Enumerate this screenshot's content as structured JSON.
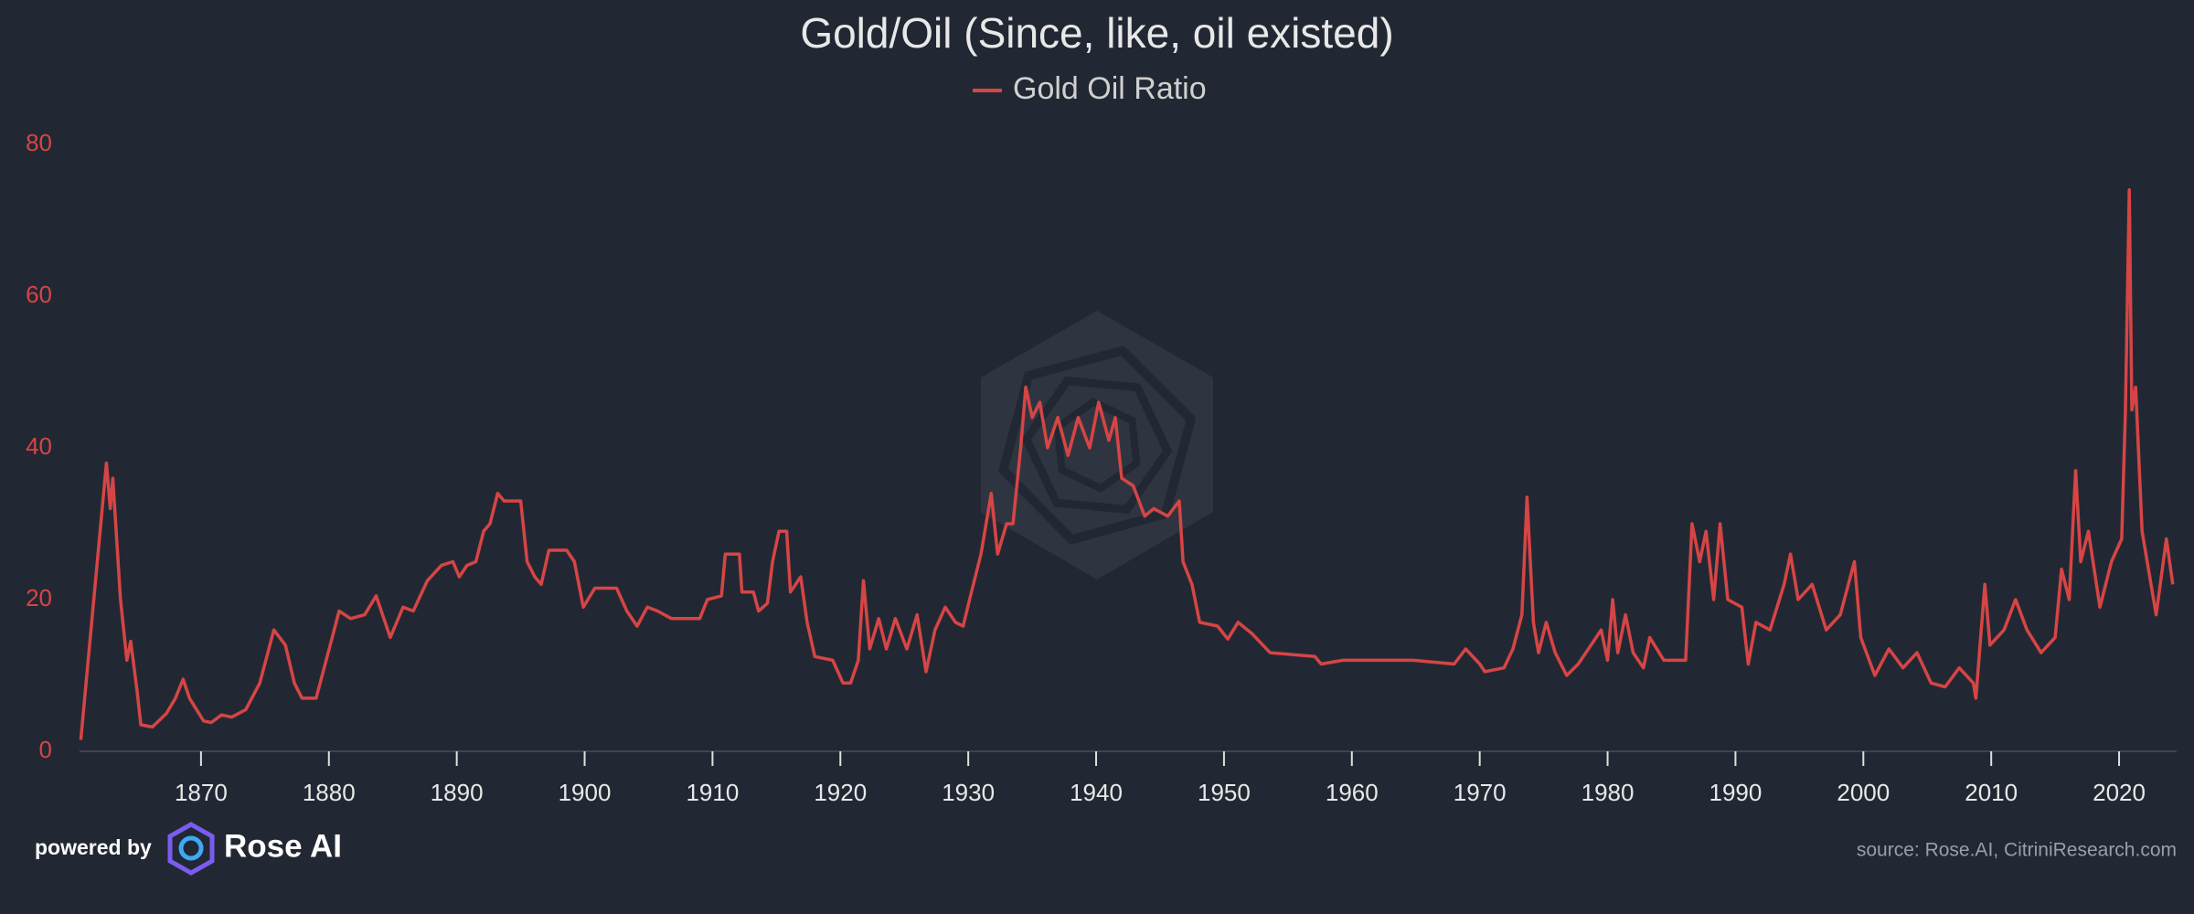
{
  "chart_data": {
    "type": "line",
    "title": "Gold/Oil (Since, like, oil existed)",
    "source": "source: Rose.AI, CitriniResearch.com",
    "branding": {
      "prefix": "powered by",
      "name": "Rose AI"
    },
    "legend": "top",
    "xlim": [
      1860.5,
      2024.5
    ],
    "xticks": [
      1870,
      1880,
      1890,
      1900,
      1910,
      1920,
      1930,
      1940,
      1950,
      1960,
      1970,
      1980,
      1990,
      2000,
      2010,
      2020
    ],
    "ylim": [
      0,
      80
    ],
    "yticks": [
      0,
      20,
      40,
      60,
      80
    ],
    "grid": false,
    "x": [
      1860.6,
      1862.6,
      1862.9,
      1863.1,
      1863.7,
      1864.2,
      1864.5,
      1865,
      1865.3,
      1866.2,
      1867.3,
      1868,
      1868.6,
      1869.1,
      1870.2,
      1870.8,
      1871.6,
      1872.4,
      1873.5,
      1874.6,
      1875.7,
      1876.6,
      1877.3,
      1877.9,
      1879,
      1880.1,
      1880.8,
      1881.7,
      1882.8,
      1883.7,
      1884.8,
      1885.8,
      1886.6,
      1887.7,
      1888.8,
      1889.7,
      1890.2,
      1890.8,
      1891.5,
      1892.1,
      1892.6,
      1893.2,
      1893.7,
      1895,
      1895.5,
      1896.1,
      1896.6,
      1897.2,
      1898.6,
      1899.2,
      1899.9,
      1900.8,
      1902.5,
      1903.3,
      1904.1,
      1904.9,
      1905.7,
      1906.8,
      1909,
      1909.6,
      1910.7,
      1911,
      1912.1,
      1912.3,
      1913.2,
      1913.6,
      1914.3,
      1914.7,
      1915.2,
      1915.8,
      1916.1,
      1916.9,
      1917.4,
      1918,
      1919.4,
      1920.2,
      1920.8,
      1921.4,
      1921.8,
      1922.3,
      1923,
      1923.6,
      1924.3,
      1925.2,
      1926,
      1926.7,
      1927.4,
      1928.2,
      1929,
      1929.6,
      1930.1,
      1931,
      1931.8,
      1932.3,
      1933,
      1933.5,
      1934.1,
      1934.5,
      1935,
      1935.6,
      1936.2,
      1937,
      1937.8,
      1938.6,
      1939.5,
      1940.2,
      1941,
      1941.5,
      1942,
      1942.9,
      1943.8,
      1944.5,
      1945.6,
      1946.5,
      1946.8,
      1947.5,
      1948.1,
      1949.5,
      1950.3,
      1951.1,
      1952.2,
      1953.6,
      1957.1,
      1957.6,
      1959.3,
      1964.8,
      1968,
      1968.9,
      1970,
      1970.4,
      1971.9,
      1972.6,
      1973.3,
      1973.7,
      1974.2,
      1974.6,
      1975.2,
      1975.9,
      1976.8,
      1977.7,
      1978.7,
      1979.5,
      1980,
      1980.4,
      1980.8,
      1981.4,
      1982,
      1982.8,
      1983.3,
      1984.4,
      1986.1,
      1986.6,
      1987.2,
      1987.7,
      1988.3,
      1988.8,
      1989.4,
      1990.5,
      1991,
      1991.6,
      1992.7,
      1993.8,
      1994.3,
      1994.9,
      1996,
      1997.1,
      1998.2,
      1999.3,
      1999.8,
      2000.9,
      2002,
      2003.1,
      2004.2,
      2005.3,
      2006.4,
      2007.5,
      2008.6,
      2008.8,
      2009.5,
      2009.9,
      2011,
      2011.9,
      2012.8,
      2013.9,
      2015,
      2015.5,
      2016.1,
      2016.6,
      2017,
      2017.6,
      2018.5,
      2019.4,
      2020.2,
      2020.5,
      2020.8,
      2021,
      2021.3,
      2021.8,
      2022.9,
      2023.7,
      2024.2
    ],
    "series": [
      {
        "name": "Gold Oil Ratio",
        "color": "#d64545",
        "values": [
          1.5,
          38,
          32,
          36,
          20,
          12,
          14.5,
          8,
          3.5,
          3.2,
          5,
          7,
          9.5,
          7,
          4,
          3.8,
          4.8,
          4.5,
          5.5,
          9,
          16,
          14,
          9,
          7,
          7,
          14,
          18.5,
          17.5,
          18,
          20.5,
          15,
          19,
          18.5,
          22.5,
          24.5,
          25,
          23,
          24.5,
          25,
          29,
          30,
          34,
          33,
          33,
          25,
          23,
          22,
          26.5,
          26.5,
          25,
          19,
          21.5,
          21.5,
          18.5,
          16.5,
          19,
          18.5,
          17.5,
          17.5,
          20,
          20.5,
          26,
          26,
          21,
          21,
          18.5,
          19.5,
          25,
          29,
          29,
          21,
          23,
          17,
          12.5,
          12,
          9,
          9,
          12,
          22.5,
          13.5,
          17.5,
          13.5,
          17.5,
          13.5,
          18,
          10.5,
          16,
          19,
          17,
          16.5,
          20,
          26,
          34,
          26,
          30,
          30,
          40,
          48,
          44,
          46,
          40,
          44,
          39,
          44,
          40,
          46,
          41,
          44,
          36,
          35,
          31,
          32,
          31,
          33,
          25,
          22,
          17,
          16.5,
          14.8,
          17,
          15.5,
          13,
          12.5,
          11.5,
          12,
          12,
          11.5,
          13.5,
          11.5,
          10.5,
          11,
          13.5,
          18,
          33.5,
          17,
          13,
          17,
          13,
          10,
          11.5,
          14,
          16,
          12,
          20,
          13,
          18,
          13,
          11,
          15,
          12,
          12,
          30,
          25,
          29,
          20,
          30,
          20,
          19,
          11.5,
          17,
          16,
          22,
          26,
          20,
          22,
          16,
          18,
          25,
          15,
          10,
          13.5,
          11,
          13,
          9,
          8.5,
          11,
          9,
          7,
          22,
          14,
          16,
          20,
          16,
          13,
          15,
          24,
          20,
          37,
          25,
          29,
          19,
          25,
          28,
          45,
          74,
          45,
          48,
          29,
          18,
          28,
          22
        ]
      }
    ]
  }
}
